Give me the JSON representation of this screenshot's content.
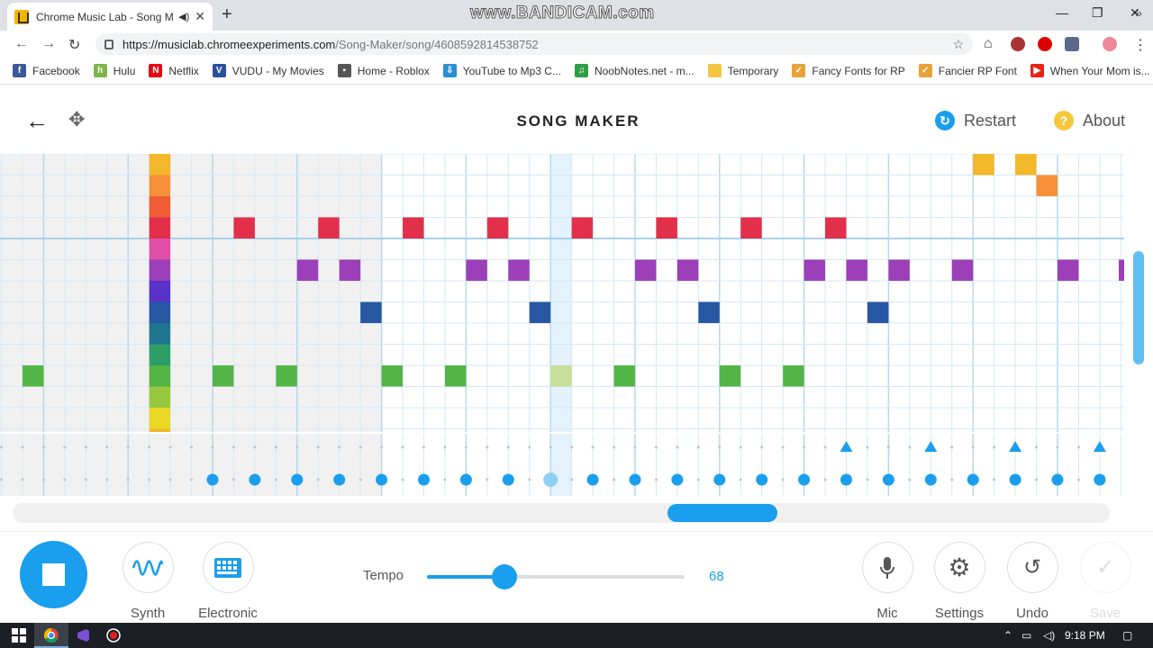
{
  "browser": {
    "tab_title": "Chrome Music Lab - Song M",
    "new_tab": "+",
    "watermark": "www.BANDICAM.com",
    "url_host": "https://musiclab.chromeexperiments.com",
    "url_path": "/Song-Maker/song/4608592814538752",
    "bookmarks": [
      {
        "label": "Facebook",
        "icon_text": "f",
        "color": "#3b5998"
      },
      {
        "label": "Hulu",
        "icon_text": "h",
        "color": "#7ab648"
      },
      {
        "label": "Netflix",
        "icon_text": "N",
        "color": "#e50914"
      },
      {
        "label": "VUDU - My Movies",
        "icon_text": "V",
        "color": "#2a4f9e"
      },
      {
        "label": "Home - Roblox",
        "icon_text": "▪",
        "color": "#555555"
      },
      {
        "label": "YouTube to Mp3 C...",
        "icon_text": "⇩",
        "color": "#2a8fd0"
      },
      {
        "label": "NoobNotes.net - m...",
        "icon_text": "♫",
        "color": "#2e9e44"
      },
      {
        "label": "Temporary",
        "icon_text": "",
        "color": "#f4c542"
      },
      {
        "label": "Fancy Fonts for RP",
        "icon_text": "✓",
        "color": "#e8a23a"
      },
      {
        "label": "Fancier RP Font",
        "icon_text": "✓",
        "color": "#e8a23a"
      },
      {
        "label": "When Your Mom is...",
        "icon_text": "▶",
        "color": "#e62117"
      }
    ]
  },
  "header": {
    "title": "SONG MAKER",
    "restart_label": "Restart",
    "about_label": "About"
  },
  "grid": {
    "note_colors": [
      "#f3b72b",
      "#f6913a",
      "#f05c35",
      "#e2304a",
      "#df4fa7",
      "#9c3fb8",
      "#5933c8",
      "#2857a4",
      "#20768e",
      "#2e9e67",
      "#54b547",
      "#97c83d",
      "#e9d825",
      "#f3b72b"
    ],
    "highlight_column": 26,
    "highlight_color": "#c6df9a",
    "notes": [
      {
        "col": 11,
        "row": 3
      },
      {
        "col": 15,
        "row": 3
      },
      {
        "col": 19,
        "row": 3
      },
      {
        "col": 23,
        "row": 3
      },
      {
        "col": 27,
        "row": 3
      },
      {
        "col": 31,
        "row": 3
      },
      {
        "col": 35,
        "row": 3
      },
      {
        "col": 39,
        "row": 3
      },
      {
        "col": 14,
        "row": 5
      },
      {
        "col": 16,
        "row": 5
      },
      {
        "col": 22,
        "row": 5
      },
      {
        "col": 24,
        "row": 5
      },
      {
        "col": 30,
        "row": 5
      },
      {
        "col": 32,
        "row": 5
      },
      {
        "col": 38,
        "row": 5
      },
      {
        "col": 40,
        "row": 5
      },
      {
        "col": 42,
        "row": 5
      },
      {
        "col": 45,
        "row": 5
      },
      {
        "col": 50,
        "row": 5
      },
      {
        "col": 17,
        "row": 7
      },
      {
        "col": 25,
        "row": 7
      },
      {
        "col": 33,
        "row": 7
      },
      {
        "col": 41,
        "row": 7
      },
      {
        "col": 1,
        "row": 10
      },
      {
        "col": 10,
        "row": 10
      },
      {
        "col": 13,
        "row": 10
      },
      {
        "col": 18,
        "row": 10
      },
      {
        "col": 21,
        "row": 10
      },
      {
        "col": 26,
        "row": 10
      },
      {
        "col": 29,
        "row": 10
      },
      {
        "col": 34,
        "row": 10
      },
      {
        "col": 37,
        "row": 10
      },
      {
        "col": 46,
        "row": 0
      },
      {
        "col": 48,
        "row": 0
      },
      {
        "col": 49,
        "row": 1
      }
    ],
    "column_bar_col": 7,
    "rhythm_color": "#1a9eee",
    "rhythm_triangles": [
      40,
      44,
      48,
      52
    ],
    "rhythm_circles": [
      10,
      12,
      14,
      16,
      18,
      20,
      22,
      24,
      26,
      28,
      30,
      32,
      34,
      36,
      38,
      40,
      42,
      44,
      46,
      48,
      50,
      52
    ]
  },
  "toolbar": {
    "synth_label": "Synth",
    "electronic_label": "Electronic",
    "tempo_label": "Tempo",
    "tempo_value": "68",
    "tempo_fraction": 0.3,
    "mic_label": "Mic",
    "settings_label": "Settings",
    "undo_label": "Undo",
    "save_label": "Save"
  },
  "taskbar": {
    "time": "9:18 PM"
  }
}
